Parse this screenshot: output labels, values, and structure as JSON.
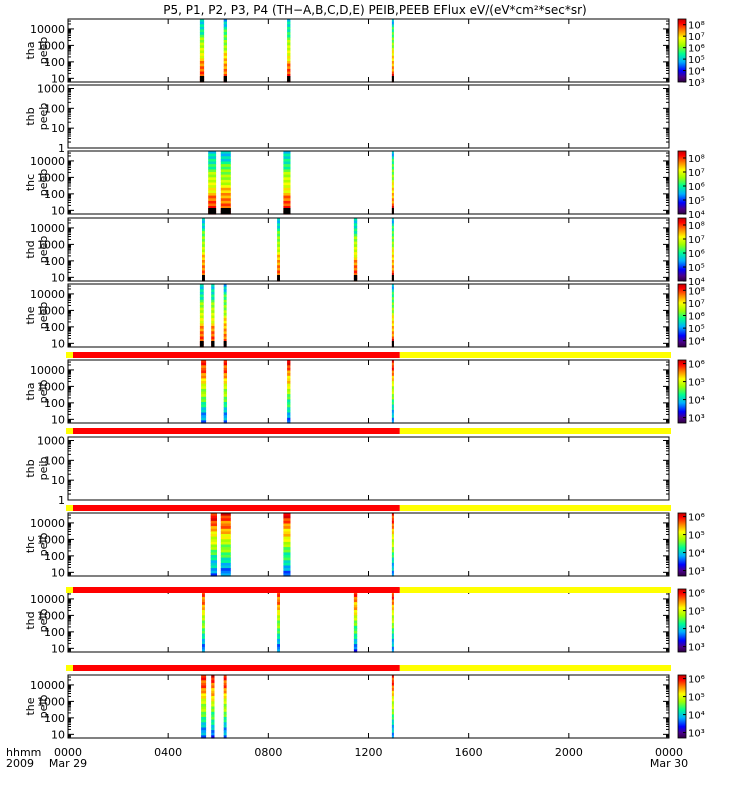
{
  "title": "P5, P1, P2, P3, P4 (TH−A,B,C,D,E) PEIB,PEEB EFlux eV/(eV*cm²*sec*sr)",
  "bottom_axis": {
    "row_labels": [
      "hhmm",
      "2009"
    ],
    "ticks": [
      {
        "t": 0,
        "label": "0000",
        "sub": "Mar 29"
      },
      {
        "t": 240,
        "label": "0400",
        "sub": ""
      },
      {
        "t": 480,
        "label": "0800",
        "sub": ""
      },
      {
        "t": 720,
        "label": "1200",
        "sub": ""
      },
      {
        "t": 960,
        "label": "1600",
        "sub": ""
      },
      {
        "t": 1200,
        "label": "2000",
        "sub": ""
      },
      {
        "t": 1440,
        "label": "0000",
        "sub": "Mar 30"
      }
    ]
  },
  "chart_data": {
    "type": "heatmap",
    "x_unit": "minutes since Mar 29 2009 00:00 UT",
    "xlim": [
      0,
      1440
    ],
    "color_scale": "rainbow (log)",
    "panels": [
      {
        "probe": "tha",
        "product": "peeb",
        "ylog": true,
        "ylim": [
          6,
          40000
        ],
        "yticks": [
          10,
          100,
          1000,
          10000
        ],
        "cbar": {
          "exps": [
            3,
            4,
            5,
            6,
            7,
            8
          ],
          "range": [
            3,
            8.5
          ]
        },
        "bursts": [
          [
            316,
            326
          ],
          [
            373,
            381
          ],
          [
            525,
            533
          ],
          [
            776,
            780
          ]
        ]
      },
      {
        "probe": "thb",
        "product": "peeb",
        "ylog": true,
        "ylim": [
          1,
          1500
        ],
        "yticks": [
          1,
          10,
          100,
          1000
        ],
        "cbar": null,
        "bursts": []
      },
      {
        "probe": "thc",
        "product": "peeb",
        "ylog": true,
        "ylim": [
          6,
          40000
        ],
        "yticks": [
          10,
          100,
          1000,
          10000
        ],
        "cbar": {
          "exps": [
            4,
            5,
            6,
            7,
            8
          ],
          "range": [
            4,
            8.5
          ]
        },
        "bursts": [
          [
            336,
            355
          ],
          [
            366,
            390
          ],
          [
            516,
            533
          ],
          [
            776,
            780
          ]
        ]
      },
      {
        "probe": "thd",
        "product": "peeb",
        "ylog": true,
        "ylim": [
          6,
          40000
        ],
        "yticks": [
          10,
          100,
          1000,
          10000
        ],
        "cbar": {
          "exps": [
            4,
            5,
            6,
            7,
            8
          ],
          "range": [
            4,
            8.5
          ]
        },
        "bursts": [
          [
            321,
            328
          ],
          [
            501,
            508
          ],
          [
            685,
            693
          ],
          [
            776,
            780
          ]
        ]
      },
      {
        "probe": "the",
        "product": "peeb",
        "ylog": true,
        "ylim": [
          6,
          40000
        ],
        "yticks": [
          10,
          100,
          1000,
          10000
        ],
        "cbar": {
          "exps": [
            4,
            5,
            6,
            7,
            8
          ],
          "range": [
            3.5,
            8.5
          ]
        },
        "bursts": [
          [
            316,
            325
          ],
          [
            343,
            351
          ],
          [
            373,
            380
          ],
          [
            776,
            780
          ]
        ]
      },
      {
        "probe": "tha",
        "product": "peib",
        "ylog": true,
        "ylim": [
          6,
          40000
        ],
        "yticks": [
          10,
          100,
          1000,
          10000
        ],
        "cbar": {
          "exps": [
            3,
            4,
            5,
            6
          ],
          "range": [
            2.7,
            6.2
          ]
        },
        "bursts": [
          [
            319,
            331
          ],
          [
            373,
            381
          ],
          [
            525,
            533
          ],
          [
            776,
            780
          ]
        ]
      },
      {
        "probe": "thb",
        "product": "peib",
        "ylog": true,
        "ylim": [
          1,
          1500
        ],
        "yticks": [
          1,
          10,
          100,
          1000
        ],
        "cbar": null,
        "bursts": []
      },
      {
        "probe": "thc",
        "product": "peib",
        "ylog": true,
        "ylim": [
          6,
          40000
        ],
        "yticks": [
          10,
          100,
          1000,
          10000
        ],
        "cbar": {
          "exps": [
            3,
            4,
            5,
            6
          ],
          "range": [
            2.7,
            6.2
          ]
        },
        "bursts": [
          [
            342,
            357
          ],
          [
            366,
            390
          ],
          [
            516,
            533
          ],
          [
            776,
            780
          ]
        ]
      },
      {
        "probe": "thd",
        "product": "peib",
        "ylog": true,
        "ylim": [
          6,
          40000
        ],
        "yticks": [
          10,
          100,
          1000,
          10000
        ],
        "cbar": {
          "exps": [
            3,
            4,
            5,
            6
          ],
          "range": [
            2.7,
            6.2
          ]
        },
        "bursts": [
          [
            321,
            328
          ],
          [
            501,
            508
          ],
          [
            685,
            693
          ],
          [
            776,
            780
          ]
        ]
      },
      {
        "probe": "the",
        "product": "peib",
        "ylog": true,
        "ylim": [
          6,
          40000
        ],
        "yticks": [
          10,
          100,
          1000,
          10000
        ],
        "cbar": {
          "exps": [
            3,
            4,
            5,
            6
          ],
          "range": [
            2.7,
            6.2
          ]
        },
        "bursts": [
          [
            319,
            331
          ],
          [
            343,
            351
          ],
          [
            373,
            380
          ],
          [
            776,
            780
          ]
        ]
      }
    ],
    "mode_bars": {
      "segments": [
        {
          "from": 0,
          "to": 12,
          "color": "#ffff00"
        },
        {
          "from": 12,
          "to": 795,
          "color": "#ff0000"
        },
        {
          "from": 795,
          "to": 1440,
          "color": "#ffff00"
        }
      ]
    }
  }
}
